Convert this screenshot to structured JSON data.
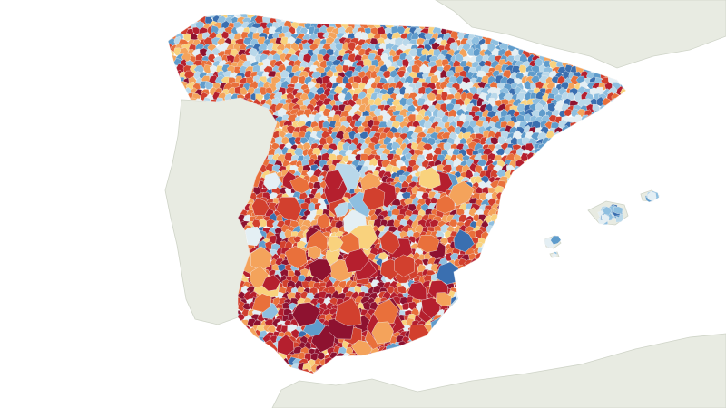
{
  "map": {
    "colors": {
      "sea": "#ffffff",
      "land": "#e8ebe2",
      "land_shade": "#dde1d6",
      "coast": "#cfd4c8",
      "border": "#f2f2f2"
    },
    "choropleth_palette": [
      "#8e1230",
      "#b51f2e",
      "#d2402e",
      "#e9703b",
      "#f4a35b",
      "#f9d27d",
      "#e4eff4",
      "#b9d8ea",
      "#8ebfe0",
      "#5f9ccc",
      "#3a6fb0"
    ],
    "regions": [
      {
        "name": "north-coast",
        "palette_weights": [
          0,
          0.5,
          1,
          2,
          2.5,
          1.5,
          1,
          2,
          2.5,
          2,
          1
        ]
      },
      {
        "name": "northeast",
        "palette_weights": [
          0,
          0,
          0.3,
          0.6,
          0.8,
          0.6,
          1.2,
          2,
          3,
          3.5,
          3
        ]
      },
      {
        "name": "northwest-interior",
        "palette_weights": [
          0.5,
          1.5,
          3,
          3,
          1.5,
          0.8,
          0.8,
          0.8,
          0.5,
          0.3,
          0.1
        ]
      },
      {
        "name": "center-north",
        "palette_weights": [
          0,
          0.5,
          1.5,
          2,
          2,
          1,
          1.5,
          2.5,
          2,
          1.2,
          0.6
        ]
      },
      {
        "name": "center-south",
        "palette_weights": [
          3,
          3,
          2.5,
          1.5,
          0.8,
          0.6,
          0.2,
          0.2,
          0.1,
          0,
          0
        ]
      },
      {
        "name": "south",
        "palette_weights": [
          4,
          3,
          2,
          1,
          0.6,
          0.5,
          0.2,
          0.1,
          0,
          0,
          0
        ]
      },
      {
        "name": "east-coast",
        "palette_weights": [
          0.5,
          1.5,
          2.5,
          2.5,
          1.5,
          1.2,
          0.5,
          0.4,
          0.2,
          0.1,
          0
        ]
      },
      {
        "name": "balearic-islands",
        "palette_weights": [
          0,
          0,
          0,
          0,
          0,
          0,
          1,
          2,
          2,
          2,
          1
        ]
      }
    ]
  }
}
